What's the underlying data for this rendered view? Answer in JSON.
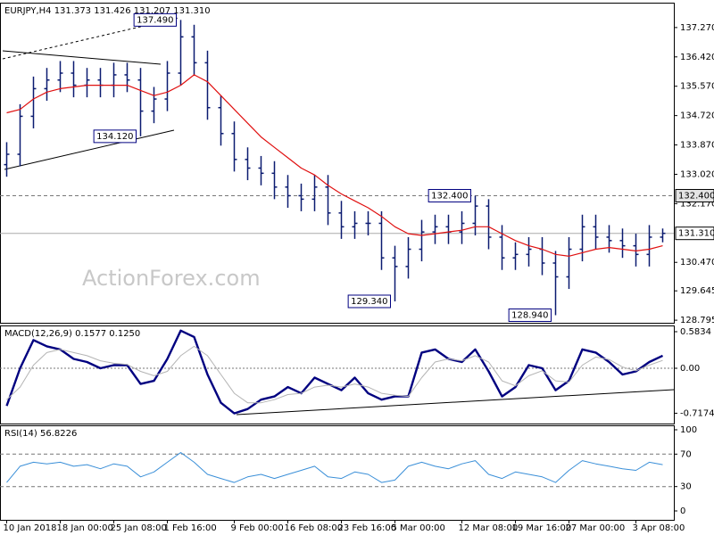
{
  "chart_data": [
    {
      "type": "ohlc",
      "title": "EURJPY,H4  131.373 131.426 131.207 131.310",
      "watermark": "ActionForex.com",
      "categories": [
        "10 Jan 2018",
        null,
        null,
        null,
        "18 Jan 00:00",
        null,
        null,
        null,
        "25 Jan 08:00",
        null,
        null,
        null,
        "1 Feb 16:00",
        null,
        null,
        null,
        null,
        "9 Feb 00:00",
        null,
        null,
        null,
        "16 Feb 08:00",
        null,
        null,
        null,
        "23 Feb 16:00",
        null,
        null,
        null,
        "5 Mar 00:00",
        null,
        null,
        null,
        null,
        "12 Mar 08:00",
        null,
        null,
        null,
        "19 Mar 16:00",
        null,
        null,
        null,
        "27 Mar 00:00",
        null,
        null,
        null,
        null,
        "3 Apr 08:00",
        null,
        null
      ],
      "open": [
        133.3,
        133.6,
        134.7,
        135.5,
        135.75,
        135.95,
        135.6,
        135.75,
        135.6,
        135.9,
        135.75,
        134.85,
        135.2,
        135.95,
        137.0,
        136.25,
        134.95,
        134.2,
        133.45,
        133.2,
        133.05,
        132.65,
        132.4,
        132.3,
        132.65,
        131.9,
        131.5,
        131.6,
        131.6,
        130.6,
        130.35,
        130.85,
        131.35,
        131.5,
        131.35,
        131.6,
        132.1,
        131.2,
        130.6,
        130.7,
        130.85,
        130.45,
        130.05,
        130.85,
        131.5,
        131.2,
        131.1,
        130.95,
        130.7,
        131.2
      ],
      "high": [
        133.95,
        135.05,
        135.85,
        136.1,
        136.3,
        136.3,
        136.1,
        136.1,
        136.25,
        136.25,
        136.1,
        135.55,
        136.3,
        137.49,
        137.35,
        136.6,
        135.3,
        134.55,
        133.8,
        133.55,
        133.4,
        133.0,
        132.75,
        133.0,
        133.0,
        132.25,
        131.95,
        131.95,
        131.95,
        130.95,
        131.2,
        131.7,
        131.85,
        131.85,
        131.95,
        132.4,
        132.3,
        131.55,
        131.05,
        131.2,
        131.2,
        130.8,
        131.2,
        131.85,
        131.85,
        131.55,
        131.45,
        131.3,
        131.55,
        131.45
      ],
      "low": [
        132.95,
        133.25,
        134.35,
        135.15,
        135.4,
        135.25,
        135.25,
        135.25,
        135.25,
        135.4,
        134.12,
        134.5,
        134.85,
        135.6,
        135.9,
        134.6,
        133.85,
        133.1,
        132.85,
        132.7,
        132.3,
        132.05,
        131.95,
        131.95,
        131.55,
        131.15,
        131.15,
        131.25,
        130.25,
        129.34,
        130.0,
        130.5,
        131.0,
        131.0,
        131.0,
        131.25,
        130.85,
        130.25,
        130.25,
        130.35,
        130.1,
        128.94,
        129.7,
        130.5,
        130.85,
        130.75,
        130.6,
        130.35,
        130.35,
        131.05
      ],
      "close": [
        133.6,
        134.7,
        135.5,
        135.75,
        135.95,
        135.6,
        135.75,
        135.6,
        135.9,
        135.75,
        134.85,
        135.2,
        135.95,
        137.0,
        136.25,
        134.95,
        134.2,
        133.45,
        133.2,
        133.05,
        132.65,
        132.4,
        132.3,
        132.65,
        131.9,
        131.5,
        131.6,
        131.6,
        130.6,
        130.35,
        130.85,
        131.35,
        131.5,
        131.35,
        131.6,
        132.1,
        131.2,
        130.6,
        130.7,
        130.85,
        130.45,
        130.05,
        130.85,
        131.5,
        131.2,
        131.1,
        130.95,
        130.7,
        131.2,
        131.31
      ],
      "color": "#0b1b70",
      "series": [
        {
          "color": "#e01010",
          "line_width": 1.2,
          "values": [
            134.8,
            134.9,
            135.2,
            135.4,
            135.5,
            135.55,
            135.6,
            135.6,
            135.6,
            135.6,
            135.45,
            135.3,
            135.4,
            135.6,
            135.9,
            135.7,
            135.3,
            134.9,
            134.5,
            134.1,
            133.8,
            133.5,
            133.2,
            133.0,
            132.7,
            132.45,
            132.25,
            132.05,
            131.8,
            131.5,
            131.3,
            131.25,
            131.3,
            131.35,
            131.4,
            131.5,
            131.5,
            131.3,
            131.1,
            130.95,
            130.85,
            130.7,
            130.65,
            130.75,
            130.85,
            130.9,
            130.85,
            130.8,
            130.85,
            130.95
          ]
        }
      ],
      "ylim": [
        128.72,
        137.99
      ],
      "yticks": [
        {
          "value": 137.27,
          "label": "137.270"
        },
        {
          "value": 136.42,
          "label": "136.420"
        },
        {
          "value": 135.57,
          "label": "135.570"
        },
        {
          "value": 134.72,
          "label": "134.720"
        },
        {
          "value": 133.87,
          "label": "133.870"
        },
        {
          "value": 133.02,
          "label": "133.020"
        },
        {
          "value": 132.17,
          "label": "132.170"
        },
        {
          "value": 130.47,
          "label": "130.470"
        },
        {
          "value": 129.645,
          "label": "129.645"
        },
        {
          "value": 128.795,
          "label": "128.795"
        }
      ],
      "levels": [
        {
          "value": 132.4,
          "label": "132.400",
          "style": "dashed"
        },
        {
          "value": 131.31,
          "label": "131.310",
          "style": "solid"
        }
      ],
      "annotations": [
        {
          "value": 137.49,
          "label": "137.490"
        },
        {
          "value": 134.12,
          "label": "134.120"
        },
        {
          "value": 132.4,
          "label": "132.400"
        },
        {
          "value": 129.34,
          "label": "129.340"
        },
        {
          "value": 128.94,
          "label": "128.940"
        }
      ]
    },
    {
      "type": "line",
      "title": "MACD(12,26,9) 0.1577 0.1250",
      "series": [
        {
          "color": "#000080",
          "line_width": 2.4,
          "values": [
            -0.6,
            0.0,
            0.45,
            0.35,
            0.3,
            0.15,
            0.1,
            0.0,
            0.05,
            0.05,
            -0.25,
            -0.2,
            0.15,
            0.6,
            0.5,
            -0.1,
            -0.55,
            -0.72,
            -0.65,
            -0.5,
            -0.45,
            -0.3,
            -0.4,
            -0.15,
            -0.25,
            -0.35,
            -0.15,
            -0.4,
            -0.5,
            -0.45,
            -0.45,
            0.25,
            0.3,
            0.15,
            0.1,
            0.3,
            -0.05,
            -0.45,
            -0.3,
            0.05,
            0.0,
            -0.35,
            -0.2,
            0.3,
            0.25,
            0.1,
            -0.1,
            -0.05,
            0.1,
            0.2
          ]
        },
        {
          "color": "#b4b4b4",
          "line_width": 1,
          "values": [
            -0.5,
            -0.3,
            0.05,
            0.25,
            0.3,
            0.25,
            0.2,
            0.12,
            0.08,
            0.06,
            -0.05,
            -0.12,
            -0.05,
            0.2,
            0.35,
            0.2,
            -0.1,
            -0.4,
            -0.55,
            -0.55,
            -0.5,
            -0.42,
            -0.4,
            -0.3,
            -0.27,
            -0.3,
            -0.25,
            -0.3,
            -0.4,
            -0.43,
            -0.45,
            -0.15,
            0.1,
            0.15,
            0.12,
            0.2,
            0.1,
            -0.2,
            -0.28,
            -0.12,
            -0.04,
            -0.2,
            -0.22,
            0.05,
            0.18,
            0.14,
            0.02,
            -0.04,
            0.05,
            0.125
          ]
        }
      ],
      "ylim": [
        -0.882,
        0.683
      ],
      "yticks": [
        0.5834,
        {
          "value": 0,
          "label": "0.00"
        },
        -0.7174
      ],
      "levels": [
        {
          "value": 0,
          "style": "dotted"
        }
      ]
    },
    {
      "type": "line",
      "title": "RSI(14) 56.8226",
      "series": [
        {
          "color": "#3a8fd8",
          "line_width": 1,
          "values": [
            35,
            55,
            60,
            58,
            60,
            55,
            57,
            52,
            58,
            55,
            42,
            48,
            60,
            72,
            60,
            45,
            40,
            35,
            42,
            45,
            40,
            45,
            50,
            55,
            42,
            40,
            48,
            45,
            35,
            38,
            55,
            60,
            55,
            52,
            58,
            62,
            45,
            40,
            48,
            45,
            42,
            35,
            50,
            62,
            58,
            55,
            52,
            50,
            60,
            57
          ]
        }
      ],
      "ylim": [
        -11,
        105.5
      ],
      "yticks": [
        100,
        70,
        30,
        0
      ],
      "levels": [
        {
          "value": 70,
          "style": "dashed"
        },
        {
          "value": 30,
          "style": "dashed"
        }
      ]
    }
  ]
}
